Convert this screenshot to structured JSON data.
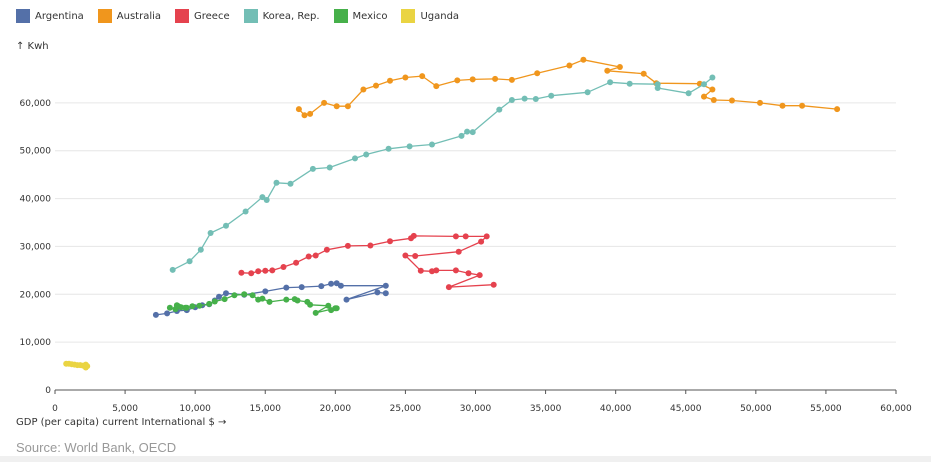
{
  "legend": [
    {
      "name": "Argentina",
      "color": "#5470a8"
    },
    {
      "name": "Australia",
      "color": "#f0961d"
    },
    {
      "name": "Greece",
      "color": "#e5424e"
    },
    {
      "name": "Korea, Rep.",
      "color": "#73beb5"
    },
    {
      "name": "Mexico",
      "color": "#46b04a"
    },
    {
      "name": "Uganda",
      "color": "#ead442"
    }
  ],
  "labels": {
    "y_axis": "↑ Kwh",
    "x_axis": "GDP (per capita) current International $  →",
    "source": "Source: World Bank, OECD"
  },
  "chart_data": {
    "type": "scatter",
    "connected": true,
    "title": "",
    "xlabel": "GDP (per capita) current International $",
    "ylabel": "Kwh",
    "xlim": [
      0,
      60000
    ],
    "ylim": [
      0,
      70000
    ],
    "x_ticks": [
      0,
      5000,
      10000,
      15000,
      20000,
      25000,
      30000,
      35000,
      40000,
      45000,
      50000,
      55000,
      60000
    ],
    "x_tick_labels": [
      "0",
      "5,000",
      "10,000",
      "15,000",
      "20,000",
      "25,000",
      "30,000",
      "35,000",
      "40,000",
      "45,000",
      "50,000",
      "55,000",
      "60,000"
    ],
    "y_ticks": [
      0,
      10000,
      20000,
      30000,
      40000,
      50000,
      60000
    ],
    "y_tick_labels": [
      "0",
      "10,000",
      "20,000",
      "30,000",
      "40,000",
      "50,000",
      "60,000"
    ],
    "grid": "horizontal",
    "legend_position": "top-left",
    "series": [
      {
        "name": "Argentina",
        "color": "#5470a8",
        "points": [
          [
            7200,
            15700
          ],
          [
            8000,
            16000
          ],
          [
            8700,
            16500
          ],
          [
            9400,
            16700
          ],
          [
            10000,
            17300
          ],
          [
            10500,
            17700
          ],
          [
            11000,
            17900
          ],
          [
            11400,
            18700
          ],
          [
            11700,
            19500
          ],
          [
            12200,
            20200
          ],
          [
            13500,
            19900
          ],
          [
            15000,
            20600
          ],
          [
            16500,
            21400
          ],
          [
            17600,
            21500
          ],
          [
            19000,
            21700
          ],
          [
            19700,
            22200
          ],
          [
            20100,
            22300
          ],
          [
            20400,
            21800
          ],
          [
            23600,
            21800
          ],
          [
            20800,
            18900
          ],
          [
            23000,
            20400
          ],
          [
            23600,
            20200
          ]
        ]
      },
      {
        "name": "Australia",
        "color": "#f0961d",
        "points": [
          [
            17400,
            58700
          ],
          [
            17800,
            57400
          ],
          [
            18200,
            57700
          ],
          [
            19200,
            60000
          ],
          [
            20100,
            59300
          ],
          [
            20900,
            59300
          ],
          [
            22000,
            62800
          ],
          [
            22900,
            63600
          ],
          [
            23900,
            64600
          ],
          [
            25000,
            65300
          ],
          [
            26200,
            65600
          ],
          [
            27200,
            63500
          ],
          [
            28700,
            64700
          ],
          [
            29800,
            64900
          ],
          [
            31400,
            65000
          ],
          [
            32600,
            64800
          ],
          [
            34400,
            66200
          ],
          [
            36700,
            67800
          ],
          [
            37700,
            69000
          ],
          [
            40300,
            67500
          ],
          [
            39400,
            66700
          ],
          [
            42000,
            66100
          ],
          [
            42900,
            64100
          ],
          [
            46000,
            64000
          ],
          [
            46900,
            62800
          ],
          [
            46300,
            61300
          ],
          [
            47000,
            60600
          ],
          [
            48300,
            60500
          ],
          [
            50300,
            60000
          ],
          [
            51900,
            59400
          ],
          [
            53300,
            59400
          ],
          [
            55800,
            58700
          ]
        ]
      },
      {
        "name": "Greece",
        "color": "#e5424e",
        "points": [
          [
            13300,
            24500
          ],
          [
            14000,
            24400
          ],
          [
            14500,
            24800
          ],
          [
            15000,
            24900
          ],
          [
            15500,
            25000
          ],
          [
            16300,
            25700
          ],
          [
            17200,
            26600
          ],
          [
            18100,
            27900
          ],
          [
            18600,
            28100
          ],
          [
            19400,
            29300
          ],
          [
            20900,
            30100
          ],
          [
            22500,
            30200
          ],
          [
            23900,
            31100
          ],
          [
            25400,
            31700
          ],
          [
            25600,
            32200
          ],
          [
            28600,
            32100
          ],
          [
            29300,
            32100
          ],
          [
            30800,
            32100
          ],
          [
            30400,
            31000
          ],
          [
            28800,
            28900
          ],
          [
            25700,
            28000
          ],
          [
            25000,
            28100
          ],
          [
            26100,
            24900
          ],
          [
            26900,
            24800
          ],
          [
            27200,
            25000
          ],
          [
            28600,
            25000
          ],
          [
            29500,
            24400
          ],
          [
            30300,
            24000
          ],
          [
            28100,
            21500
          ],
          [
            31300,
            22000
          ]
        ]
      },
      {
        "name": "Korea, Rep.",
        "color": "#73beb5",
        "points": [
          [
            8400,
            25100
          ],
          [
            9600,
            26900
          ],
          [
            10400,
            29300
          ],
          [
            11100,
            32800
          ],
          [
            12200,
            34300
          ],
          [
            13600,
            37300
          ],
          [
            14800,
            40300
          ],
          [
            15100,
            39700
          ],
          [
            15800,
            43300
          ],
          [
            16800,
            43100
          ],
          [
            18400,
            46200
          ],
          [
            19600,
            46500
          ],
          [
            21400,
            48400
          ],
          [
            22200,
            49200
          ],
          [
            23800,
            50400
          ],
          [
            25300,
            50900
          ],
          [
            26900,
            51300
          ],
          [
            29000,
            53100
          ],
          [
            29400,
            54000
          ],
          [
            29800,
            53900
          ],
          [
            31700,
            58600
          ],
          [
            32600,
            60600
          ],
          [
            33500,
            60900
          ],
          [
            34300,
            60800
          ],
          [
            35400,
            61500
          ],
          [
            38000,
            62200
          ],
          [
            39600,
            64300
          ],
          [
            41000,
            64000
          ],
          [
            43000,
            63900
          ],
          [
            43000,
            63100
          ],
          [
            45200,
            62000
          ],
          [
            46300,
            63900
          ],
          [
            46900,
            65300
          ]
        ]
      },
      {
        "name": "Mexico",
        "color": "#46b04a",
        "points": [
          [
            8200,
            17200
          ],
          [
            8600,
            16900
          ],
          [
            8800,
            17500
          ],
          [
            9300,
            17200
          ],
          [
            8700,
            17700
          ],
          [
            9000,
            17300
          ],
          [
            9400,
            17200
          ],
          [
            9800,
            17500
          ],
          [
            10300,
            17600
          ],
          [
            11000,
            18000
          ],
          [
            11400,
            18500
          ],
          [
            12100,
            19000
          ],
          [
            12800,
            19800
          ],
          [
            13500,
            20000
          ],
          [
            14100,
            19800
          ],
          [
            14500,
            18900
          ],
          [
            14800,
            19100
          ],
          [
            15300,
            18400
          ],
          [
            16500,
            18900
          ],
          [
            17100,
            19000
          ],
          [
            17300,
            18700
          ],
          [
            18000,
            18400
          ],
          [
            18200,
            17800
          ],
          [
            19500,
            17600
          ],
          [
            18600,
            16100
          ],
          [
            20000,
            17100
          ],
          [
            19700,
            16700
          ],
          [
            20100,
            17100
          ]
        ]
      },
      {
        "name": "Uganda",
        "color": "#ead442",
        "points": [
          [
            800,
            5500
          ],
          [
            1000,
            5500
          ],
          [
            1200,
            5400
          ],
          [
            1400,
            5300
          ],
          [
            1600,
            5200
          ],
          [
            1800,
            5200
          ],
          [
            2000,
            5100
          ],
          [
            2200,
            5300
          ],
          [
            2300,
            5000
          ],
          [
            2200,
            4700
          ]
        ]
      }
    ]
  }
}
